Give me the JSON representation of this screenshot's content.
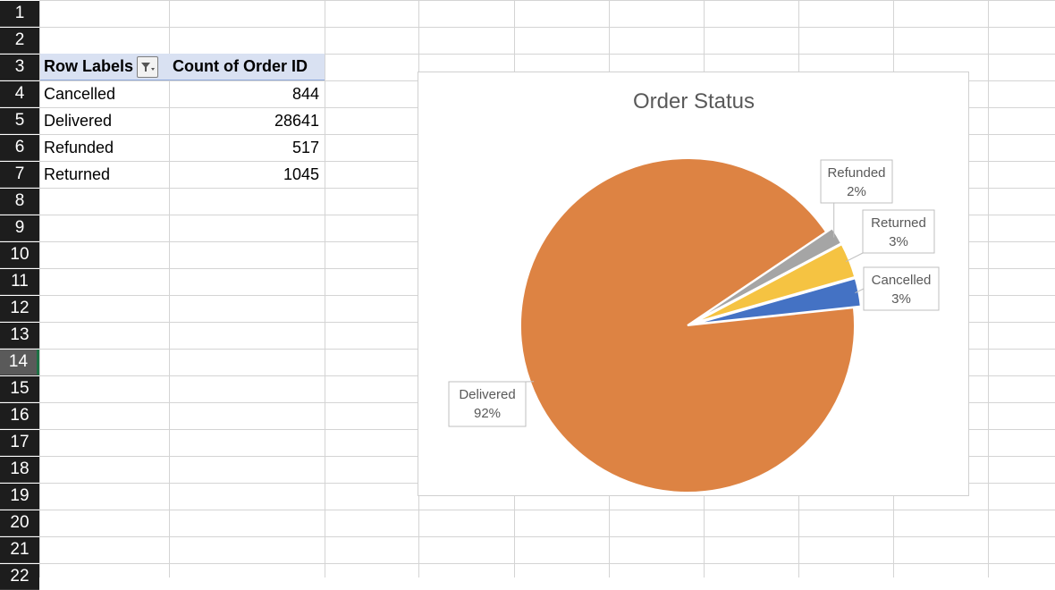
{
  "sheet": {
    "row_numbers": [
      "1",
      "2",
      "3",
      "4",
      "5",
      "6",
      "7",
      "8",
      "9",
      "10",
      "11",
      "12",
      "13",
      "14",
      "15",
      "16",
      "17",
      "18",
      "19",
      "20",
      "21",
      "22"
    ],
    "active_row": "14"
  },
  "pivot": {
    "header_label": "Row Labels",
    "header_value": "Count of Order ID",
    "filter_icon": "filter-dropdown-icon",
    "rows": [
      {
        "label": "Cancelled",
        "value": "844"
      },
      {
        "label": "Delivered",
        "value": "28641"
      },
      {
        "label": "Refunded",
        "value": "517"
      },
      {
        "label": "Returned",
        "value": "1045"
      }
    ]
  },
  "chart_data": {
    "type": "pie",
    "title": "Order Status",
    "categories": [
      "Cancelled",
      "Delivered",
      "Refunded",
      "Returned"
    ],
    "values": [
      844,
      28641,
      517,
      1045
    ],
    "percent_labels": [
      "3%",
      "92%",
      "2%",
      "3%"
    ],
    "colors": [
      "#4472c4",
      "#dd8343",
      "#a5a5a5",
      "#f5c342"
    ],
    "legend": "none",
    "data_labels": "callout"
  }
}
